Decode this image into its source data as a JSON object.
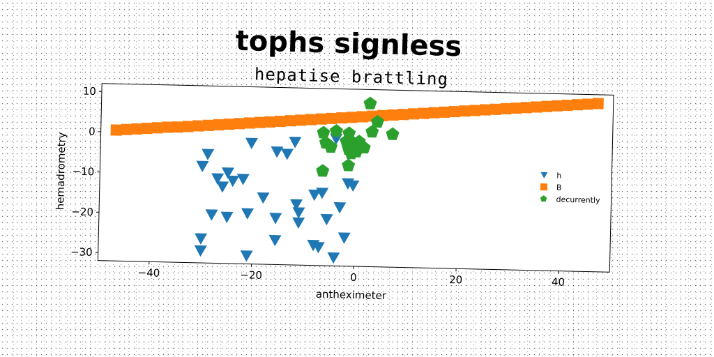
{
  "chart_data": {
    "type": "scatter",
    "title": "tophs signless",
    "subtitle": "hepatise brattling",
    "xlabel": "antheximeter",
    "ylabel": "hemadrometry",
    "xlim": [
      -50,
      50
    ],
    "ylim": [
      -32,
      12
    ],
    "xticks": [
      -40,
      -20,
      0,
      20,
      40
    ],
    "yticks": [
      10,
      0,
      -10,
      -20,
      -30
    ],
    "grid": false,
    "legend_position": "right",
    "series": [
      {
        "name": "h",
        "marker": "triangle-down",
        "color": "#1f77b4",
        "points": [
          [
            -29,
            -5
          ],
          [
            -30,
            -8
          ],
          [
            -27,
            -11
          ],
          [
            -26,
            -13
          ],
          [
            -25,
            -9.5
          ],
          [
            -24,
            -11.5
          ],
          [
            -22,
            -11
          ],
          [
            -20.5,
            -2
          ],
          [
            -15.5,
            -4
          ],
          [
            -13.5,
            -4.5
          ],
          [
            -12,
            -1.5
          ],
          [
            -18,
            -15.5
          ],
          [
            -21,
            -19.5
          ],
          [
            -15.5,
            -20.5
          ],
          [
            -11.5,
            -17
          ],
          [
            -11,
            -19
          ],
          [
            -11,
            -21.5
          ],
          [
            -28,
            -20
          ],
          [
            -25,
            -20.5
          ],
          [
            -15.5,
            -26
          ],
          [
            -30,
            -26
          ],
          [
            -30,
            -29
          ],
          [
            -21,
            -30
          ],
          [
            -8,
            -27
          ],
          [
            -7,
            -27.5
          ],
          [
            -6.5,
            -14
          ],
          [
            -8,
            -14.5
          ],
          [
            -5.5,
            -20.5
          ],
          [
            -3,
            -17.5
          ],
          [
            -2,
            -25
          ],
          [
            -4,
            -30
          ],
          [
            -4,
            -0.5
          ],
          [
            -1.5,
            -11.5
          ],
          [
            -0.5,
            -12
          ]
        ]
      },
      {
        "name": "B",
        "marker": "square",
        "color": "#ff7f0e",
        "points": [
          [
            -47,
            0.5
          ],
          [
            -45,
            0.7
          ],
          [
            -43,
            0.9
          ],
          [
            -41,
            1.1
          ],
          [
            -39,
            1.3
          ],
          [
            -37,
            1.5
          ],
          [
            -35,
            1.6
          ],
          [
            -33,
            1.8
          ],
          [
            -31,
            2.0
          ],
          [
            -29,
            2.2
          ],
          [
            -27,
            2.4
          ],
          [
            -25,
            2.6
          ],
          [
            -23,
            2.8
          ],
          [
            -21,
            3.0
          ],
          [
            -19,
            3.2
          ],
          [
            -17,
            3.4
          ],
          [
            -15,
            3.6
          ],
          [
            -13,
            3.8
          ],
          [
            -11,
            4.0
          ],
          [
            -9,
            4.2
          ],
          [
            -7,
            4.4
          ],
          [
            -5,
            4.6
          ],
          [
            -3,
            4.8
          ],
          [
            -1,
            5.0
          ],
          [
            1,
            5.2
          ],
          [
            3,
            5.4
          ],
          [
            5,
            5.6
          ],
          [
            7,
            5.8
          ],
          [
            9,
            6.0
          ],
          [
            11,
            6.2
          ],
          [
            13,
            6.4
          ],
          [
            15,
            6.6
          ],
          [
            17,
            6.8
          ],
          [
            19,
            7.0
          ],
          [
            21,
            7.2
          ],
          [
            23,
            7.4
          ],
          [
            25,
            7.6
          ],
          [
            27,
            7.8
          ],
          [
            29,
            8.0
          ],
          [
            31,
            8.2
          ],
          [
            33,
            8.4
          ],
          [
            35,
            8.6
          ],
          [
            37,
            8.8
          ],
          [
            39,
            9.0
          ],
          [
            41,
            9.2
          ],
          [
            43,
            9.4
          ],
          [
            45,
            9.6
          ],
          [
            47,
            9.8
          ]
        ]
      },
      {
        "name": "decurrently",
        "marker": "pentagon",
        "color": "#2ca02c",
        "points": [
          [
            2.5,
            8.5
          ],
          [
            4,
            4
          ],
          [
            7,
            1
          ],
          [
            3,
            1.5
          ],
          [
            -6.5,
            1
          ],
          [
            -4,
            1.5
          ],
          [
            -1.5,
            1
          ],
          [
            -6,
            -1.5
          ],
          [
            -5,
            -2.5
          ],
          [
            -2,
            -1
          ],
          [
            -1.5,
            -3
          ],
          [
            -0.5,
            -1.5
          ],
          [
            0.5,
            -1
          ],
          [
            1.5,
            -2.5
          ],
          [
            0,
            -3.5
          ],
          [
            -1,
            -4
          ],
          [
            -1.5,
            -7
          ],
          [
            -6.5,
            -8.5
          ]
        ]
      }
    ]
  }
}
